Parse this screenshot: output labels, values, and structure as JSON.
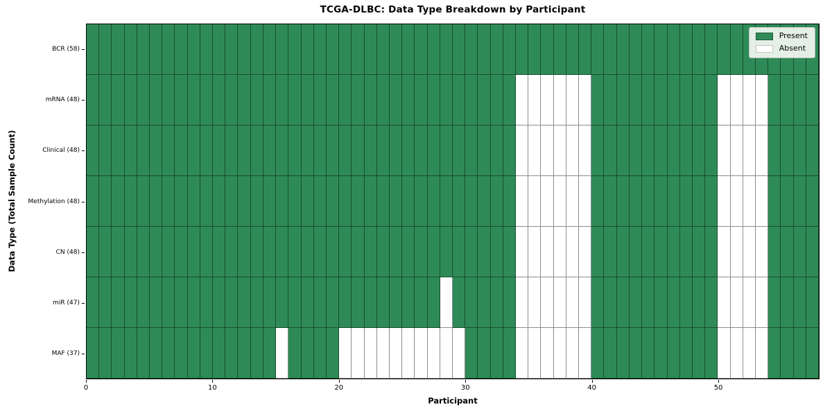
{
  "chart_data": {
    "type": "heatmap",
    "title": "TCGA-DLBC: Data Type Breakdown by Participant",
    "xlabel": "Participant",
    "ylabel": "Data Type (Total Sample Count)",
    "n_participants": 58,
    "x_axis": {
      "ticks": [
        0,
        10,
        20,
        30,
        40,
        50
      ],
      "range": [
        0,
        58
      ]
    },
    "legend": {
      "position": "upper right",
      "items": [
        {
          "label": "Present",
          "value": 1,
          "color": "#2e8b57"
        },
        {
          "label": "Absent",
          "value": 0,
          "color": "#ffffff"
        }
      ]
    },
    "rows": [
      {
        "label": "BCR (58)",
        "name": "BCR",
        "total_sample_count": 58,
        "present_count": 58,
        "absent_participants": []
      },
      {
        "label": "mRNA (48)",
        "name": "mRNA",
        "total_sample_count": 48,
        "present_count": 48,
        "absent_participants": [
          34,
          35,
          36,
          37,
          38,
          39,
          50,
          51,
          52,
          53
        ]
      },
      {
        "label": "Clinical (48)",
        "name": "Clinical",
        "total_sample_count": 48,
        "present_count": 48,
        "absent_participants": [
          34,
          35,
          36,
          37,
          38,
          39,
          50,
          51,
          52,
          53
        ]
      },
      {
        "label": "Methylation (48)",
        "name": "Methylation",
        "total_sample_count": 48,
        "present_count": 48,
        "absent_participants": [
          34,
          35,
          36,
          37,
          38,
          39,
          50,
          51,
          52,
          53
        ]
      },
      {
        "label": "CN (48)",
        "name": "CN",
        "total_sample_count": 48,
        "present_count": 48,
        "absent_participants": [
          34,
          35,
          36,
          37,
          38,
          39,
          50,
          51,
          52,
          53
        ]
      },
      {
        "label": "miR (47)",
        "name": "miR",
        "total_sample_count": 47,
        "present_count": 47,
        "absent_participants": [
          28,
          34,
          35,
          36,
          37,
          38,
          39,
          50,
          51,
          52,
          53
        ]
      },
      {
        "label": "MAF (37)",
        "name": "MAF",
        "total_sample_count": 37,
        "present_count": 37,
        "absent_participants": [
          15,
          20,
          21,
          22,
          23,
          24,
          25,
          26,
          27,
          28,
          29,
          34,
          35,
          36,
          37,
          38,
          39,
          50,
          51,
          52,
          53
        ]
      }
    ],
    "colors": {
      "present": "#2e8b57",
      "absent": "#ffffff",
      "cell_edge": "rgba(0,0,0,0.45)",
      "frame": "#000000",
      "legend_bg": "#f2f6f1",
      "legend_border": "#b7bfb7"
    }
  }
}
